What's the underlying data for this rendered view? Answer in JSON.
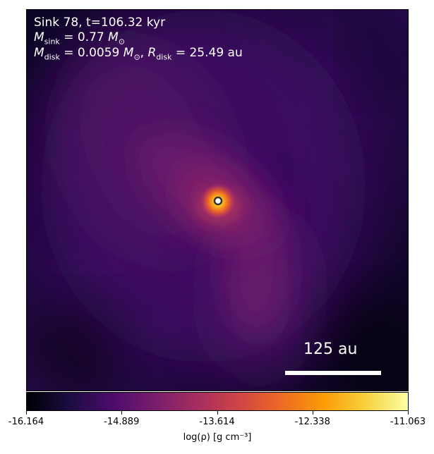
{
  "annotation": {
    "line1": "Sink 78, t=106.32 kyr",
    "msink_symbol": "M",
    "msink_sub": "sink",
    "msink_eq": " = 0.77 ",
    "msink_unit": "M",
    "msink_unit_sub": "⊙",
    "mdisk_symbol": "M",
    "mdisk_sub": "disk",
    "mdisk_eq": " = 0.0059 ",
    "mdisk_unit": "M",
    "mdisk_unit_sub": "⊙",
    "rdisk_symbol": "R",
    "rdisk_sub": "disk",
    "rdisk_eq": " = 25.49 au"
  },
  "scale_bar": {
    "label": "125 au"
  },
  "colorbar": {
    "label": "log(ρ) [g cm⁻³]",
    "ticks": [
      "-16.164",
      "-14.889",
      "-13.614",
      "-12.338",
      "-11.063"
    ],
    "colormap": "inferno",
    "colors": [
      "#000004",
      "#1b0c41",
      "#4a0c6b",
      "#781c6d",
      "#a52c60",
      "#cf4446",
      "#ed6925",
      "#fb9b06",
      "#f7d13d",
      "#fcffa4"
    ]
  },
  "sink_marker": {
    "fill": "#ffffff",
    "stroke": "#333333"
  }
}
